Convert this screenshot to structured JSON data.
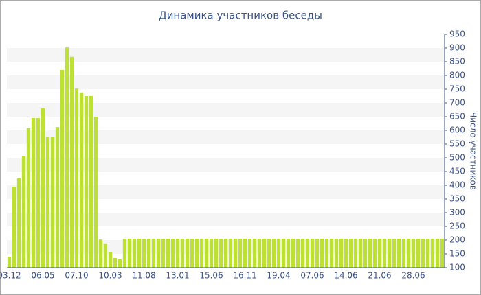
{
  "chart_data": {
    "type": "bar",
    "title": "Динамика участников беседы",
    "y_label": "Число участников",
    "categories": [
      "03.12",
      null,
      null,
      null,
      null,
      null,
      null,
      "06.05",
      null,
      null,
      null,
      null,
      null,
      null,
      "07.10",
      null,
      null,
      null,
      null,
      null,
      null,
      "10.03",
      null,
      null,
      null,
      null,
      null,
      null,
      "11.08",
      null,
      null,
      null,
      null,
      null,
      null,
      "13.01",
      null,
      null,
      null,
      null,
      null,
      null,
      "15.06",
      null,
      null,
      null,
      null,
      null,
      null,
      "16.11",
      null,
      null,
      null,
      null,
      null,
      null,
      "19.04",
      null,
      null,
      null,
      null,
      null,
      null,
      "07.06",
      null,
      null,
      null,
      null,
      null,
      null,
      "14.06",
      null,
      null,
      null,
      null,
      null,
      null,
      "21.06",
      null,
      null,
      null,
      null,
      null,
      null,
      "28.06",
      null,
      null,
      null,
      null,
      null,
      null
    ],
    "values": [
      140,
      395,
      425,
      505,
      608,
      645,
      645,
      680,
      575,
      575,
      612,
      820,
      902,
      868,
      752,
      738,
      725,
      725,
      650,
      202,
      188,
      155,
      135,
      130,
      205,
      205,
      205,
      205,
      205,
      205,
      205,
      205,
      205,
      205,
      205,
      205,
      205,
      205,
      205,
      205,
      205,
      205,
      205,
      205,
      205,
      205,
      205,
      205,
      205,
      205,
      205,
      205,
      205,
      205,
      205,
      205,
      205,
      205,
      205,
      205,
      205,
      205,
      205,
      205,
      205,
      205,
      205,
      205,
      205,
      205,
      205,
      205,
      205,
      205,
      205,
      205,
      205,
      205,
      205,
      205,
      205,
      205,
      205,
      205,
      205,
      205,
      205,
      205,
      205,
      205,
      205
    ],
    "color": "#bde035",
    "ylim": [
      100,
      950
    ],
    "yticks": [
      100,
      150,
      200,
      250,
      300,
      350,
      400,
      450,
      500,
      550,
      600,
      650,
      700,
      750,
      800,
      850,
      900,
      950
    ],
    "grid": true
  }
}
